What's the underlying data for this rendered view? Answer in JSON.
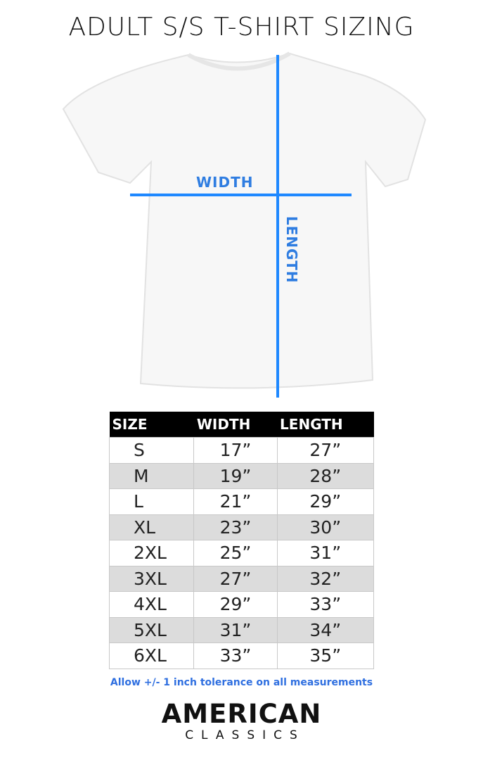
{
  "title": "ADULT S/S T-SHIRT SIZING",
  "diagram": {
    "width_label": "WIDTH",
    "length_label": "LENGTH",
    "line_color": "#1e88ff",
    "label_color": "#2f7de1"
  },
  "table": {
    "headers": [
      "SIZE",
      "WIDTH",
      "LENGTH"
    ],
    "rows": [
      [
        "S",
        "17”",
        "27”"
      ],
      [
        "M",
        "19”",
        "28”"
      ],
      [
        "L",
        "21”",
        "29”"
      ],
      [
        "XL",
        "23”",
        "30”"
      ],
      [
        "2XL",
        "25”",
        "31”"
      ],
      [
        "3XL",
        "27”",
        "32”"
      ],
      [
        "4XL",
        "29”",
        "33”"
      ],
      [
        "5XL",
        "31”",
        "34”"
      ],
      [
        "6XL",
        "33”",
        "35”"
      ]
    ]
  },
  "note": "Allow +/- 1 inch tolerance on all measurements",
  "logo": {
    "line1": "AMERICAN",
    "line2": "CLASSICS"
  }
}
